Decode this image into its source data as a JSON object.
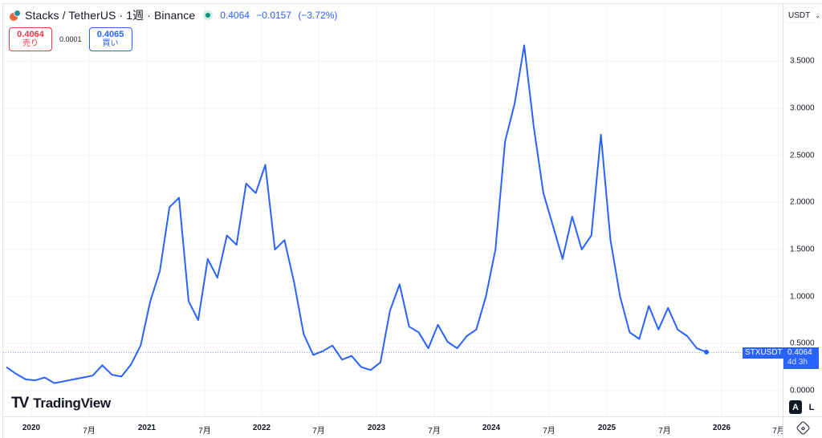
{
  "header": {
    "title": "Stacks / TetherUS · 1週 · Binance",
    "symbol_icon": "stacks-coin-icon",
    "status": "market-open-dot",
    "last_price": "0.4064",
    "change": "−0.0157",
    "change_pct": "(−3.72%)"
  },
  "trade": {
    "sell_price": "0.4064",
    "sell_label": "売り",
    "spread": "0.0001",
    "buy_price": "0.4065",
    "buy_label": "買い"
  },
  "price_scale": {
    "currency": "USDT",
    "labels": [
      "3.5000",
      "3.0000",
      "2.5000",
      "2.0000",
      "1.5000",
      "1.0000",
      "0.5000",
      "0.0000"
    ]
  },
  "time_scale": {
    "labels": [
      "2020",
      "7月",
      "2021",
      "7月",
      "2022",
      "7月",
      "2023",
      "7月",
      "2024",
      "7月",
      "2025",
      "7月",
      "2026",
      "7月"
    ]
  },
  "last_price_tag": {
    "symbol": "STXUSDT",
    "price": "0.4064",
    "countdown": "4d 3h"
  },
  "scale_buttons": {
    "auto": "A",
    "log": "L"
  },
  "branding": {
    "name": "TradingView"
  },
  "colors": {
    "line": "#2962ff",
    "sell": "#f23645",
    "buy": "#2962ff",
    "live": "#089981",
    "grid": "#f0f3fa"
  },
  "chart_data": {
    "type": "line",
    "title": "Stacks / TetherUS · 1週 · Binance",
    "xlabel": "",
    "ylabel": "USDT",
    "ylim": [
      -0.05,
      3.85
    ],
    "grid": true,
    "legend": "none",
    "x_ticks": [
      "2020",
      "7月",
      "2021",
      "7月",
      "2022",
      "7月",
      "2023",
      "7月",
      "2024",
      "7月",
      "2025",
      "7月",
      "2026",
      "7月"
    ],
    "series": [
      {
        "name": "STXUSDT",
        "x": [
          "2019-10",
          "2019-11",
          "2019-12",
          "2020-01",
          "2020-02",
          "2020-03",
          "2020-04",
          "2020-05",
          "2020-06",
          "2020-07",
          "2020-08",
          "2020-09",
          "2020-10",
          "2020-11",
          "2020-12",
          "2021-01",
          "2021-02",
          "2021-03",
          "2021-04",
          "2021-05",
          "2021-06",
          "2021-07",
          "2021-08",
          "2021-09",
          "2021-10",
          "2021-11",
          "2021-12",
          "2022-01",
          "2022-02",
          "2022-03",
          "2022-04",
          "2022-05",
          "2022-06",
          "2022-07",
          "2022-08",
          "2022-09",
          "2022-10",
          "2022-11",
          "2022-12",
          "2023-01",
          "2023-02",
          "2023-03",
          "2023-04",
          "2023-05",
          "2023-06",
          "2023-07",
          "2023-08",
          "2023-09",
          "2023-10",
          "2023-11",
          "2023-12",
          "2024-01",
          "2024-02",
          "2024-03",
          "2024-04",
          "2024-05",
          "2024-06",
          "2024-07",
          "2024-08",
          "2024-09",
          "2024-10",
          "2024-11",
          "2024-12",
          "2025-01",
          "2025-02",
          "2025-03",
          "2025-04",
          "2025-05",
          "2025-06",
          "2025-07",
          "2025-08",
          "2025-09",
          "2025-10",
          "2025-11"
        ],
        "values": [
          0.25,
          0.18,
          0.12,
          0.11,
          0.14,
          0.08,
          0.1,
          0.12,
          0.14,
          0.16,
          0.27,
          0.17,
          0.15,
          0.28,
          0.48,
          0.95,
          1.27,
          1.95,
          2.05,
          0.95,
          0.75,
          1.4,
          1.2,
          1.65,
          1.55,
          2.2,
          2.1,
          2.4,
          1.5,
          1.6,
          1.15,
          0.6,
          0.38,
          0.42,
          0.48,
          0.33,
          0.37,
          0.25,
          0.22,
          0.3,
          0.85,
          1.13,
          0.68,
          0.62,
          0.45,
          0.7,
          0.52,
          0.45,
          0.58,
          0.65,
          1.0,
          1.5,
          2.65,
          3.05,
          3.67,
          2.8,
          2.1,
          1.75,
          1.4,
          1.85,
          1.5,
          1.65,
          2.72,
          1.6,
          1.0,
          0.62,
          0.55,
          0.9,
          0.65,
          0.88,
          0.65,
          0.58,
          0.45,
          0.41
        ]
      }
    ],
    "last_value": 0.4064
  }
}
